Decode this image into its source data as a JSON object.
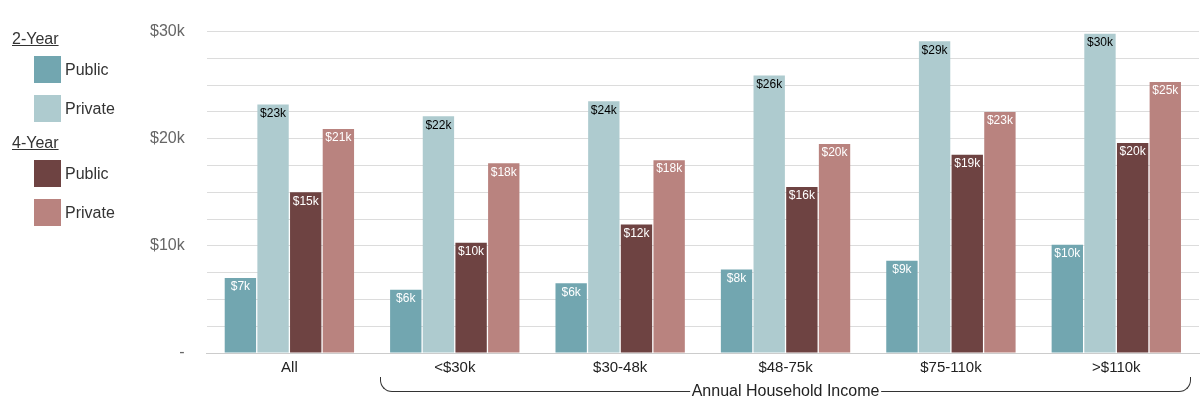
{
  "chart_data": {
    "type": "bar",
    "xlabel": "Annual Household Income",
    "categories": [
      "All",
      "<$30k",
      "$30-48k",
      "$48-75k",
      "$75-110k",
      ">$110k"
    ],
    "series": [
      {
        "name": "Public",
        "color": "#72a6b0",
        "values": [
          7.0,
          5.9,
          6.5,
          7.8,
          8.6,
          10.1
        ],
        "value_labels": [
          "$7k",
          "$6k",
          "$6k",
          "$8k",
          "$9k",
          "$10k"
        ]
      },
      {
        "name": "Private",
        "color": "#aecbcf",
        "values": [
          23.2,
          22.1,
          23.5,
          25.9,
          29.1,
          29.8
        ],
        "value_labels": [
          "$23k",
          "$22k",
          "$24k",
          "$26k",
          "$29k",
          "$30k"
        ]
      },
      {
        "name": "Public",
        "color": "#6e4342",
        "values": [
          15.0,
          10.3,
          12.0,
          15.5,
          18.5,
          19.6
        ],
        "value_labels": [
          "$15k",
          "$10k",
          "$12k",
          "$16k",
          "$19k",
          "$20k"
        ]
      },
      {
        "name": "Private",
        "color": "#b9837f",
        "values": [
          20.9,
          17.7,
          18.0,
          19.5,
          22.5,
          25.3
        ],
        "value_labels": [
          "$21k",
          "$18k",
          "$18k",
          "$20k",
          "$23k",
          "$25k"
        ]
      }
    ],
    "annotations": [
      "2-Year",
      "4-Year"
    ],
    "ylim": [
      0,
      30
    ],
    "yticks": [
      {
        "value": 0,
        "label": "-"
      },
      {
        "value": 2.5,
        "label": null
      },
      {
        "value": 5,
        "label": null
      },
      {
        "value": 7.5,
        "label": null
      },
      {
        "value": 10,
        "label": "$10k"
      },
      {
        "value": 12.5,
        "label": null
      },
      {
        "value": 15,
        "label": null
      },
      {
        "value": 17.5,
        "label": null
      },
      {
        "value": 20,
        "label": "$20k"
      },
      {
        "value": 22.5,
        "label": null
      },
      {
        "value": 25,
        "label": null
      },
      {
        "value": 27.5,
        "label": null
      },
      {
        "value": 30,
        "label": "$30k"
      }
    ],
    "grid": "y",
    "legend": "left"
  }
}
